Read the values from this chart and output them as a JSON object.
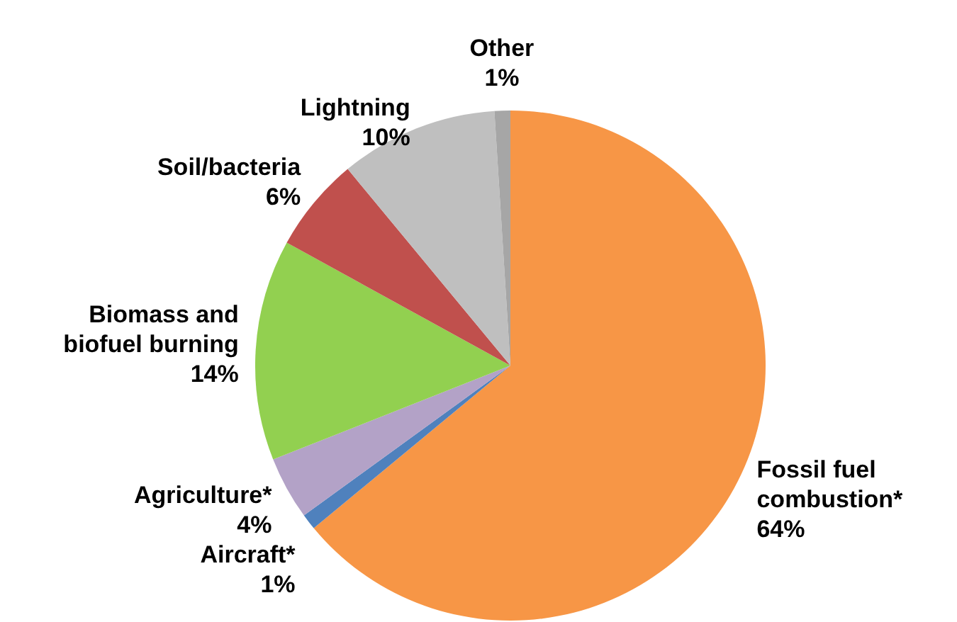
{
  "chart_data": {
    "type": "pie",
    "categories": [
      "Fossil fuel combustion*",
      "Aircraft*",
      "Agriculture*",
      "Biomass and biofuel burning",
      "Soil/bacteria",
      "Lightning",
      "Other"
    ],
    "values": [
      64,
      1,
      4,
      14,
      6,
      10,
      1
    ],
    "colors": [
      "#f79646",
      "#4f81bd",
      "#b3a2c7",
      "#92d050",
      "#c0504d",
      "#bfbfbf",
      "#a6a6a6"
    ],
    "value_labels": [
      "64%",
      "1%",
      "4%",
      "14%",
      "6%",
      "10%",
      "1%"
    ],
    "legend": false
  }
}
